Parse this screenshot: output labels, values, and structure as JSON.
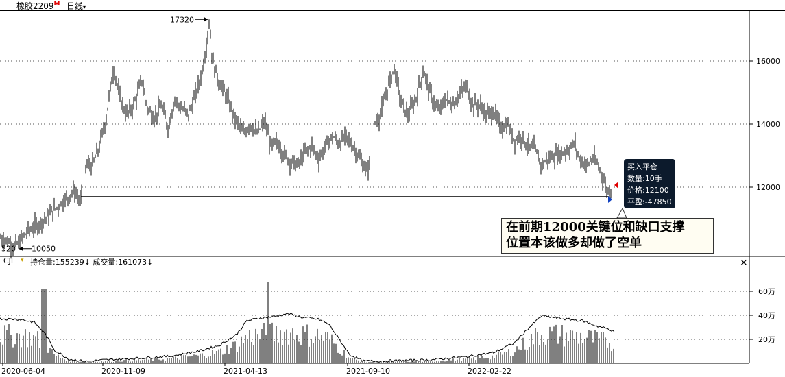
{
  "header": {
    "symbol": "橡胶2209",
    "symbol_mark": "M",
    "period": "日线",
    "period_caret": "▾"
  },
  "main_chart": {
    "high_label": "17320",
    "low_label_left": "520",
    "low_label": "10050",
    "y_ticks": [
      "16000",
      "14000",
      "12000"
    ],
    "support_price": 11700
  },
  "annotation": {
    "line1": "在前期12000关键位和缺口支撑",
    "line2": "位置本该做多却做了空单"
  },
  "trade_tooltip": {
    "line1": "买入平仓",
    "line2": "数量:10手",
    "line3": "价格:12100",
    "line4": "平盈:-47850"
  },
  "sub_chart": {
    "name": "CJL",
    "dropdown": "▾",
    "values_text": "持仓量:155239↓ 成交量:161073↓",
    "y_ticks": [
      "60万",
      "40万",
      "20万"
    ],
    "close": "✕"
  },
  "x_axis": [
    "2020-06-04",
    "2020-11-09",
    "2021-04-13",
    "2021-09-10",
    "2022-02-22"
  ],
  "chart_data": {
    "type": "candlestick",
    "price_series": [
      [
        0,
        10400
      ],
      [
        10,
        10300
      ],
      [
        20,
        10100
      ],
      [
        30,
        10300
      ],
      [
        40,
        10600
      ],
      [
        55,
        10800
      ],
      [
        70,
        11100
      ],
      [
        85,
        11400
      ],
      [
        100,
        11700
      ],
      [
        108,
        11900
      ],
      [
        118,
        11500
      ],
      [
        125,
        12700
      ],
      [
        135,
        12700
      ],
      [
        145,
        13300
      ],
      [
        155,
        14200
      ],
      [
        160,
        15000
      ],
      [
        166,
        15800
      ],
      [
        175,
        14800
      ],
      [
        185,
        14300
      ],
      [
        195,
        14600
      ],
      [
        207,
        15400
      ],
      [
        215,
        14500
      ],
      [
        225,
        14200
      ],
      [
        235,
        14600
      ],
      [
        245,
        13900
      ],
      [
        255,
        14800
      ],
      [
        265,
        14500
      ],
      [
        275,
        14300
      ],
      [
        285,
        14900
      ],
      [
        292,
        15400
      ],
      [
        300,
        16300
      ],
      [
        305,
        17300
      ],
      [
        310,
        16000
      ],
      [
        318,
        15400
      ],
      [
        330,
        14900
      ],
      [
        340,
        14300
      ],
      [
        355,
        13700
      ],
      [
        365,
        14000
      ],
      [
        375,
        13700
      ],
      [
        386,
        14100
      ],
      [
        395,
        13300
      ],
      [
        405,
        13400
      ],
      [
        415,
        13000
      ],
      [
        425,
        12800
      ],
      [
        435,
        12700
      ],
      [
        445,
        13100
      ],
      [
        455,
        13300
      ],
      [
        465,
        12900
      ],
      [
        475,
        13300
      ],
      [
        485,
        13600
      ],
      [
        495,
        13400
      ],
      [
        505,
        13600
      ],
      [
        515,
        13300
      ],
      [
        525,
        12900
      ],
      [
        535,
        12500
      ],
      [
        540,
        12800
      ],
      [
        546,
        14000
      ],
      [
        555,
        14300
      ],
      [
        565,
        15100
      ],
      [
        575,
        15800
      ],
      [
        585,
        14700
      ],
      [
        595,
        14300
      ],
      [
        605,
        14700
      ],
      [
        618,
        15700
      ],
      [
        628,
        14900
      ],
      [
        640,
        14400
      ],
      [
        650,
        14800
      ],
      [
        660,
        14600
      ],
      [
        672,
        15000
      ],
      [
        680,
        15200
      ],
      [
        690,
        14600
      ],
      [
        700,
        14600
      ],
      [
        710,
        14300
      ],
      [
        720,
        14400
      ],
      [
        730,
        13900
      ],
      [
        740,
        14000
      ],
      [
        750,
        13500
      ],
      [
        760,
        13600
      ],
      [
        770,
        13300
      ],
      [
        780,
        13200
      ],
      [
        790,
        12700
      ],
      [
        800,
        12900
      ],
      [
        810,
        13000
      ],
      [
        820,
        13100
      ],
      [
        830,
        13200
      ],
      [
        838,
        13400
      ],
      [
        845,
        12900
      ],
      [
        855,
        12700
      ],
      [
        865,
        12900
      ],
      [
        872,
        12700
      ],
      [
        878,
        12400
      ],
      [
        885,
        11900
      ],
      [
        892,
        11900
      ]
    ],
    "price_high": 17320,
    "price_low": 10050,
    "support_level": 11700,
    "open_interest_series": [
      [
        0,
        0.62
      ],
      [
        30,
        0.61
      ],
      [
        50,
        0.57
      ],
      [
        65,
        0.42
      ],
      [
        80,
        0.18
      ],
      [
        100,
        0.06
      ],
      [
        125,
        0.025
      ],
      [
        150,
        0.045
      ],
      [
        200,
        0.07
      ],
      [
        250,
        0.1
      ],
      [
        290,
        0.17
      ],
      [
        320,
        0.25
      ],
      [
        345,
        0.4
      ],
      [
        360,
        0.59
      ],
      [
        380,
        0.63
      ],
      [
        400,
        0.65
      ],
      [
        420,
        0.69
      ],
      [
        440,
        0.64
      ],
      [
        465,
        0.61
      ],
      [
        480,
        0.54
      ],
      [
        495,
        0.33
      ],
      [
        510,
        0.12
      ],
      [
        530,
        0.03
      ],
      [
        580,
        0.035
      ],
      [
        630,
        0.05
      ],
      [
        680,
        0.09
      ],
      [
        720,
        0.15
      ],
      [
        750,
        0.28
      ],
      [
        770,
        0.48
      ],
      [
        790,
        0.66
      ],
      [
        820,
        0.62
      ],
      [
        850,
        0.59
      ],
      [
        870,
        0.52
      ],
      [
        890,
        0.47
      ],
      [
        895,
        0.44
      ]
    ],
    "y_unit": "万",
    "sub_ylim": [
      0,
      70
    ]
  }
}
